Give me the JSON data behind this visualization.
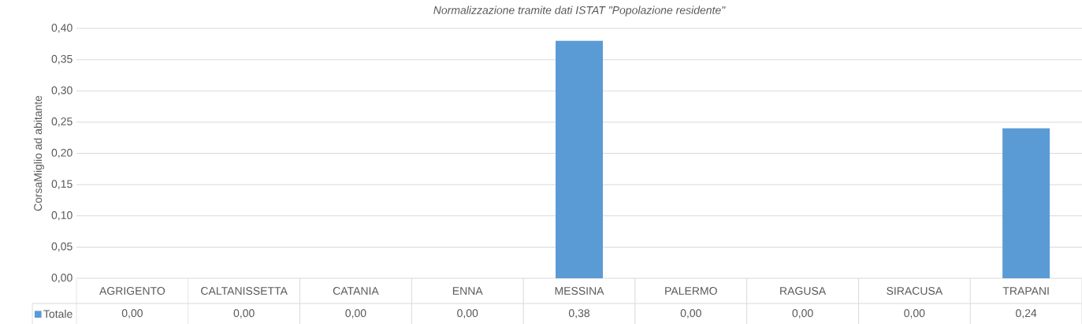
{
  "chart_data": {
    "type": "bar",
    "title": "Normalizzazione tramite dati ISTAT \"Popolazione residente\"",
    "ylabel": "CorsaMiglio ad abitante",
    "categories": [
      "AGRIGENTO",
      "CALTANISSETTA",
      "CATANIA",
      "ENNA",
      "MESSINA",
      "PALERMO",
      "RAGUSA",
      "SIRACUSA",
      "TRAPANI"
    ],
    "series": [
      {
        "name": "Totale",
        "color": "#5b9bd5",
        "values": [
          0,
          0,
          0,
          0,
          0.38,
          0,
          0,
          0,
          0.24
        ],
        "value_labels": [
          "0,00",
          "0,00",
          "0,00",
          "0,00",
          "0,38",
          "0,00",
          "0,00",
          "0,00",
          "0,24"
        ]
      }
    ],
    "ylim": [
      0,
      0.4
    ],
    "yticks": [
      {
        "value": 0,
        "label": "0,00"
      },
      {
        "value": 0.05,
        "label": "0,05"
      },
      {
        "value": 0.1,
        "label": "0,10"
      },
      {
        "value": 0.15,
        "label": "0,15"
      },
      {
        "value": 0.2,
        "label": "0,20"
      },
      {
        "value": 0.25,
        "label": "0,25"
      },
      {
        "value": 0.3,
        "label": "0,30"
      },
      {
        "value": 0.35,
        "label": "0,35"
      },
      {
        "value": 0.4,
        "label": "0,40"
      }
    ],
    "grid": "y",
    "legend": "bottom left"
  }
}
